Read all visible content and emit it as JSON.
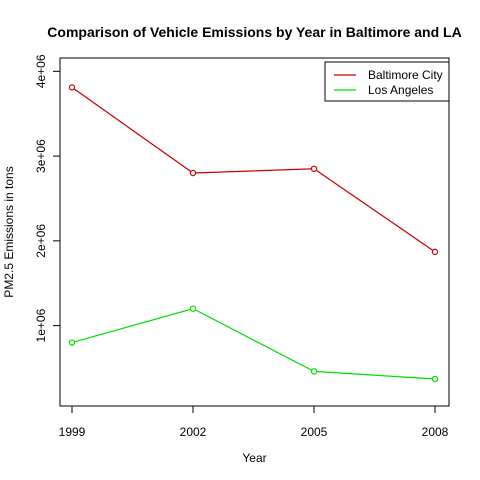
{
  "chart_data": {
    "type": "line",
    "title": "Comparison of Vehicle Emissions by Year in Baltimore and LA",
    "xlabel": "Year",
    "ylabel": "PM2.5 Emissions in tons",
    "x": [
      1999,
      2002,
      2005,
      2008
    ],
    "x_tick_labels": [
      "1999",
      "2002",
      "2005",
      "2008"
    ],
    "y_ticks": [
      1000000,
      2000000,
      3000000,
      4000000
    ],
    "y_tick_labels": [
      "1e+06",
      "2e+06",
      "3e+06",
      "4e+06"
    ],
    "xlim": [
      1999,
      2008
    ],
    "ylim": [
      370000,
      3815000
    ],
    "grid": false,
    "legend_position": "top-right",
    "series": [
      {
        "name": "Baltimore City",
        "color": "#cc0000",
        "values": [
          3810000,
          2800000,
          2850000,
          1870000
        ]
      },
      {
        "name": "Los Angeles",
        "color": "#00dd00",
        "values": [
          800000,
          1200000,
          460000,
          370000
        ]
      }
    ]
  }
}
